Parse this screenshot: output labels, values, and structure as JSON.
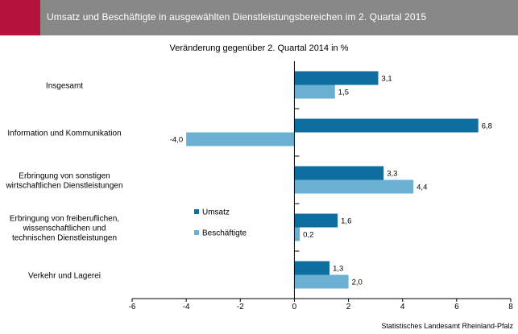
{
  "header": {
    "title": "Umsatz und Beschäftigte in ausgewählten Dienstleistungsbereichen im 2. Quartal 2015",
    "accent_color": "#b5123e",
    "background_color": "#888888"
  },
  "source": "Statistisches Landesamt Rheinland-Pfalz",
  "chart_data": {
    "type": "bar",
    "orientation": "horizontal",
    "subtitle": "Veränderung gegenüber 2. Quartal 2014 in %",
    "categories": [
      [
        "Insgesamt"
      ],
      [
        "Information und Kommunikation"
      ],
      [
        "Erbringung von sonstigen",
        "wirtschaftlichen Dienstleistungen"
      ],
      [
        "Erbringung von freiberuflichen,",
        "wissenschaftlichen und",
        "technischen Dienstleistungen"
      ],
      [
        "Verkehr und Lagerei"
      ]
    ],
    "series": [
      {
        "name": "Umsatz",
        "color": "#0e6ea0",
        "values": [
          3.1,
          6.8,
          3.3,
          1.6,
          1.3
        ],
        "labels": [
          "3,1",
          "6,8",
          "3,3",
          "1,6",
          "1,3"
        ]
      },
      {
        "name": "Beschäftigte",
        "color": "#6bb0d2",
        "values": [
          1.5,
          -4.0,
          4.4,
          0.2,
          2.0
        ],
        "labels": [
          "1,5",
          "-4,0",
          "4,4",
          "0,2",
          "2,0"
        ]
      }
    ],
    "xlim": [
      -6,
      8
    ],
    "xticks": [
      -6,
      -4,
      -2,
      0,
      2,
      4,
      6,
      8
    ],
    "xtick_labels": [
      "-6",
      "-4",
      "-2",
      "0",
      "2",
      "4",
      "6",
      "8"
    ],
    "grid": false,
    "legend_position": "inside-left"
  }
}
